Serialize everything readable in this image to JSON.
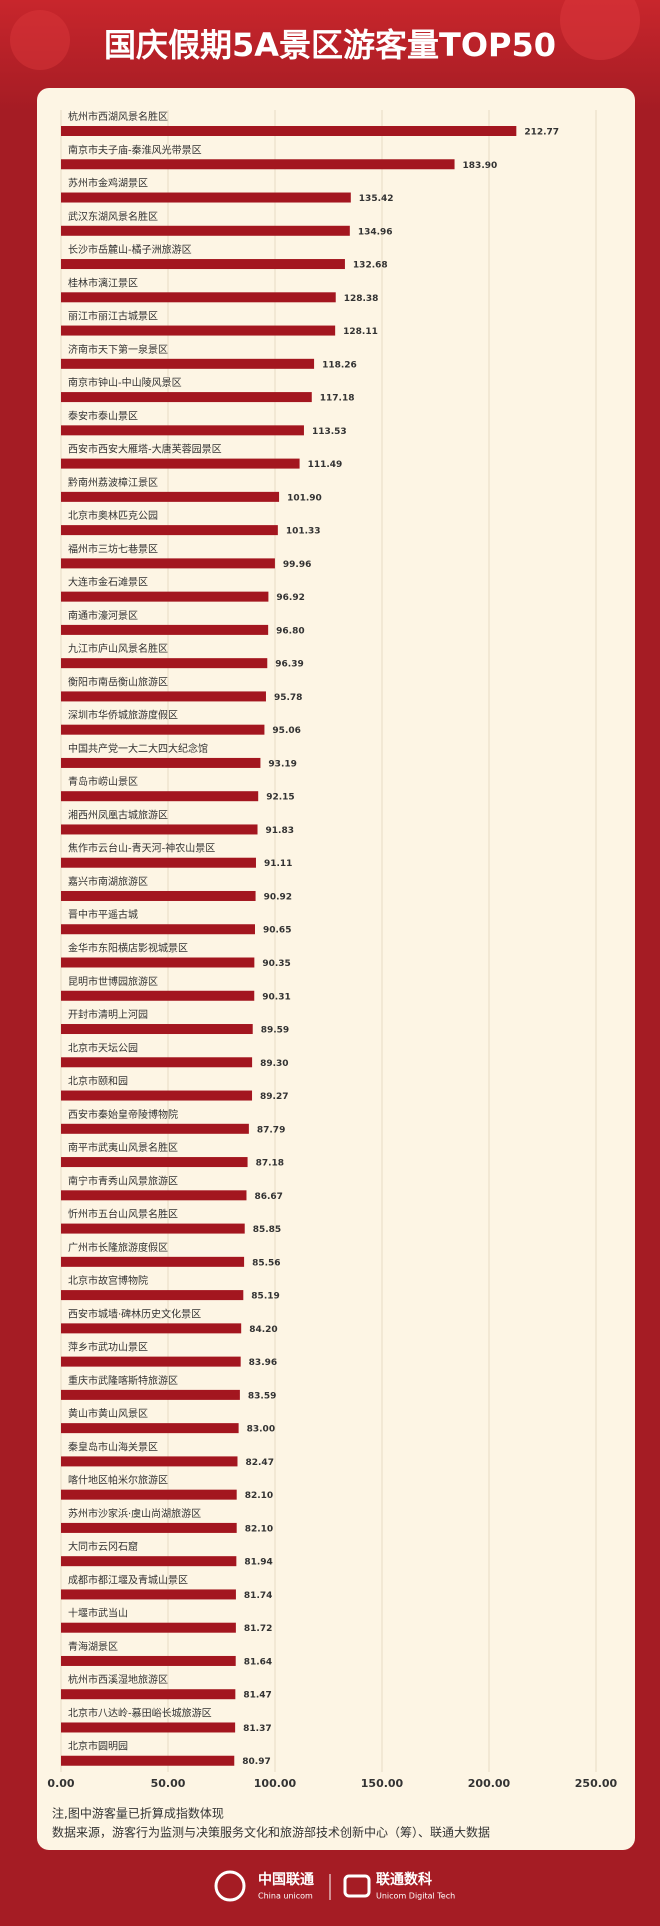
{
  "chart_data": {
    "type": "hbar",
    "title": "国庆假期5A景区游客量TOP50",
    "categories": [
      "杭州市西湖风景名胜区",
      "南京市夫子庙-秦淮风光带景区",
      "苏州市金鸡湖景区",
      "武汉东湖风景名胜区",
      "长沙市岳麓山-橘子洲旅游区",
      "桂林市漓江景区",
      "丽江市丽江古城景区",
      "济南市天下第一泉景区",
      "南京市钟山-中山陵风景区",
      "泰安市泰山景区",
      "西安市西安大雁塔-大唐芙蓉园景区",
      "黔南州荔波樟江景区",
      "北京市奥林匹克公园",
      "福州市三坊七巷景区",
      "大连市金石滩景区",
      "南通市濠河景区",
      "九江市庐山风景名胜区",
      "衡阳市南岳衡山旅游区",
      "深圳市华侨城旅游度假区",
      "中国共产党一大二大四大纪念馆",
      "青岛市崂山景区",
      "湘西州凤凰古城旅游区",
      "焦作市云台山-青天河-神农山景区",
      "嘉兴市南湖旅游区",
      "晋中市平遥古城",
      "金华市东阳横店影视城景区",
      "昆明市世博园旅游区",
      "开封市清明上河园",
      "北京市天坛公园",
      "北京市颐和园",
      "西安市秦始皇帝陵博物院",
      "南平市武夷山风景名胜区",
      "南宁市青秀山风景旅游区",
      "忻州市五台山风景名胜区",
      "广州市长隆旅游度假区",
      "北京市故宫博物院",
      "西安市城墙·碑林历史文化景区",
      "萍乡市武功山景区",
      "重庆市武隆喀斯特旅游区",
      "黄山市黄山风景区",
      "秦皇岛市山海关景区",
      "喀什地区帕米尔旅游区",
      "苏州市沙家浜·虞山尚湖旅游区",
      "大同市云冈石窟",
      "成都市都江堰及青城山景区",
      "十堰市武当山",
      "青海湖景区",
      "杭州市西溪湿地旅游区",
      "北京市八达岭-慕田峪长城旅游区",
      "北京市圆明园"
    ],
    "values": [
      212.77,
      183.9,
      135.42,
      134.96,
      132.68,
      128.38,
      128.11,
      118.26,
      117.18,
      113.53,
      111.49,
      101.9,
      101.33,
      99.96,
      96.92,
      96.8,
      96.39,
      95.78,
      95.06,
      93.19,
      92.15,
      91.83,
      91.11,
      90.92,
      90.65,
      90.35,
      90.31,
      89.59,
      89.3,
      89.27,
      87.79,
      87.18,
      86.67,
      85.85,
      85.56,
      85.19,
      84.2,
      83.96,
      83.59,
      83,
      82.47,
      82.1,
      82.1,
      81.94,
      81.74,
      81.72,
      81.64,
      81.47,
      81.37,
      80.97
    ],
    "value_labels": [
      "212.77",
      "183.90",
      "135.42",
      "134.96",
      "132.68",
      "128.38",
      "128.11",
      "118.26",
      "117.18",
      "113.53",
      "111.49",
      "101.90",
      "101.33",
      "99.96",
      "96.92",
      "96.80",
      "96.39",
      "95.78",
      "95.06",
      "93.19",
      "92.15",
      "91.83",
      "91.11",
      "90.92",
      "90.65",
      "90.35",
      "90.31",
      "89.59",
      "89.30",
      "89.27",
      "87.79",
      "87.18",
      "86.67",
      "85.85",
      "85.56",
      "85.19",
      "84.20",
      "83.96",
      "83.59",
      "83.00",
      "82.47",
      "82.10",
      "82.10",
      "81.94",
      "81.74",
      "81.72",
      "81.64",
      "81.47",
      "81.37",
      "80.97"
    ],
    "color": "#a3161f",
    "xlim": [
      0,
      250
    ],
    "xticks": [
      {
        "value": 0,
        "label": "0.00"
      },
      {
        "value": 50,
        "label": "50.00"
      },
      {
        "value": 100,
        "label": "100.00"
      },
      {
        "value": 150,
        "label": "150.00"
      },
      {
        "value": 200,
        "label": "200.00"
      },
      {
        "value": 250,
        "label": "250.00"
      }
    ],
    "grid": true,
    "notes": [
      "注,图中游客量已折算成指数体现",
      "数据来源，游客行为监测与决策服务文化和旅游部技术创新中心（筹）、联通大数据"
    ]
  },
  "footer": {
    "logo1": "中国联通",
    "logo1_sub": "China unicom",
    "logo2": "联通数科",
    "logo2_sub": "Unicom Digital Tech"
  }
}
